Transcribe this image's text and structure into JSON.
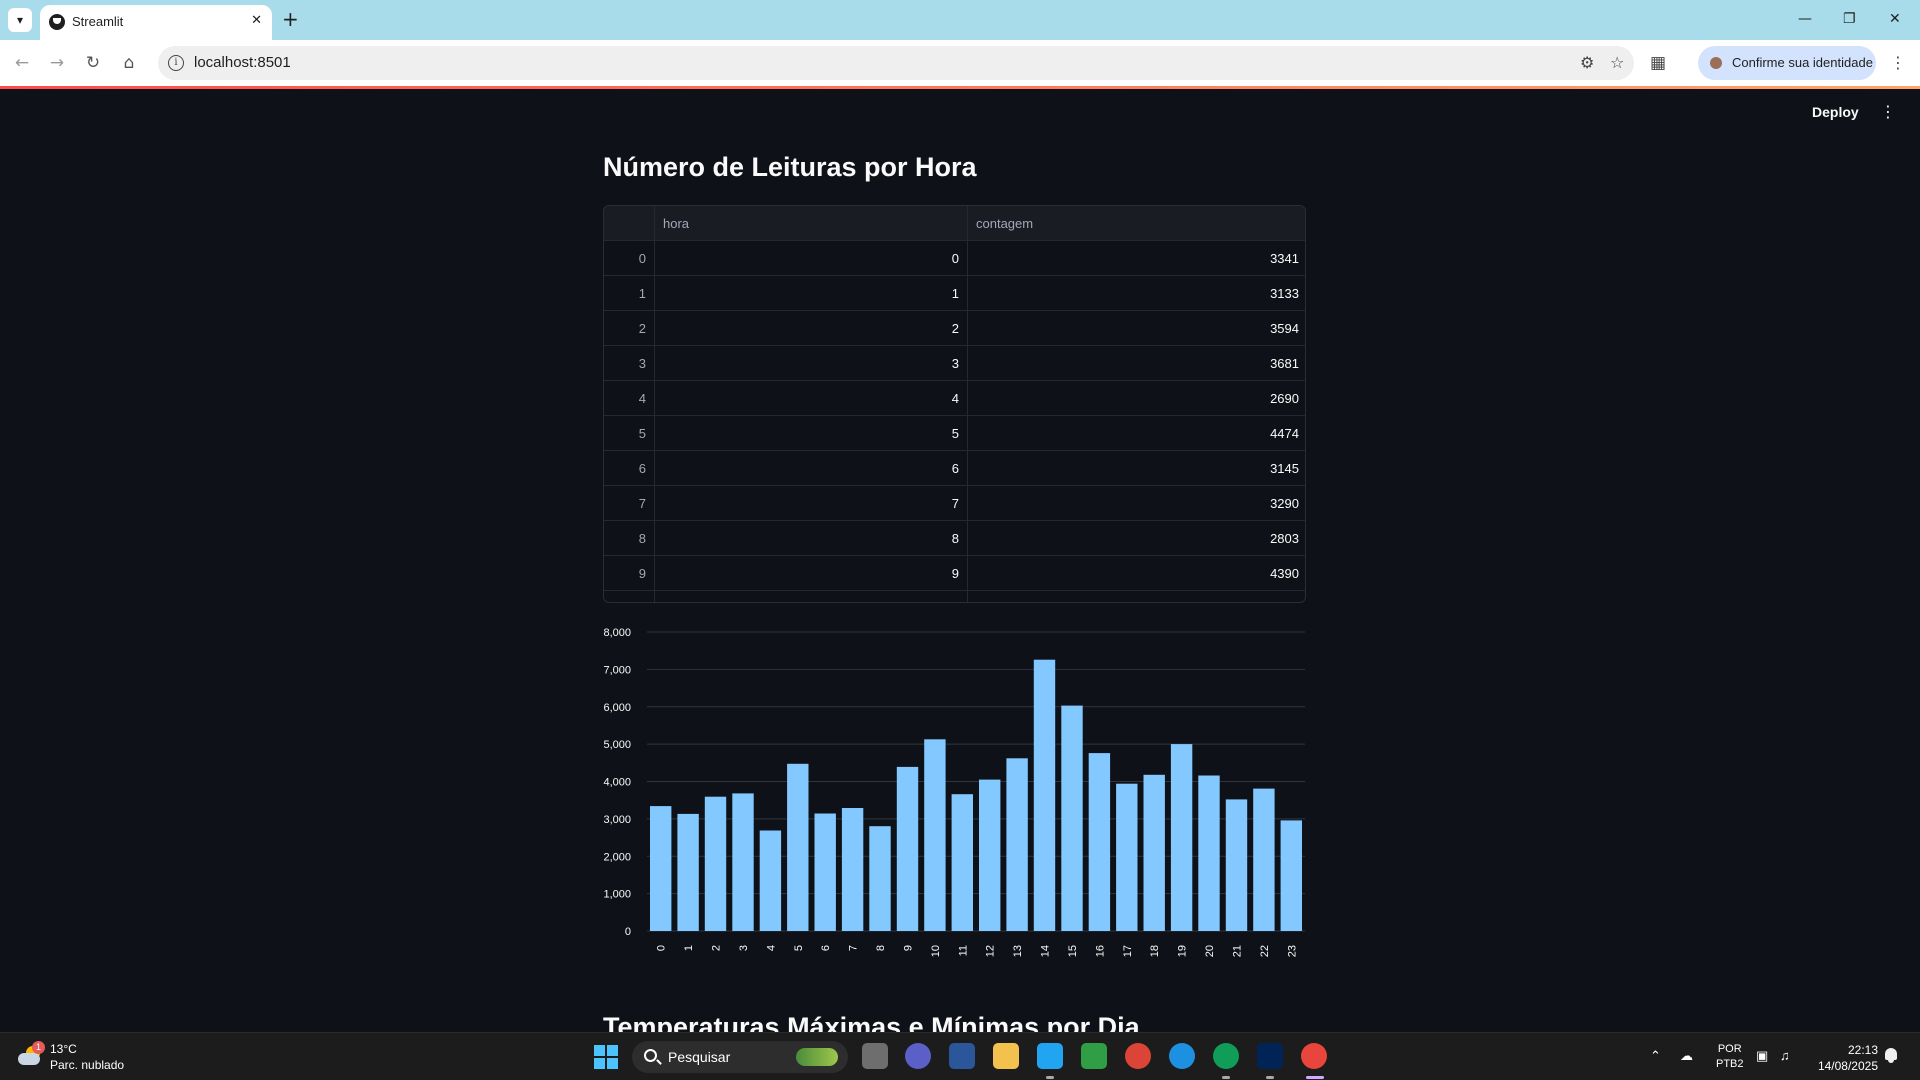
{
  "browser": {
    "tab_title": "Streamlit",
    "url": "localhost:8501",
    "identity_button": "Confirme sua identidade"
  },
  "app": {
    "deploy_label": "Deploy",
    "title": "Número de Leituras por Hora",
    "next_section_title": "Temperaturas Máximas e Mínimas por Dia"
  },
  "table": {
    "columns": [
      "",
      "hora",
      "contagem"
    ],
    "rows": [
      {
        "index": "0",
        "hora": "0",
        "contagem": "3341"
      },
      {
        "index": "1",
        "hora": "1",
        "contagem": "3133"
      },
      {
        "index": "2",
        "hora": "2",
        "contagem": "3594"
      },
      {
        "index": "3",
        "hora": "3",
        "contagem": "3681"
      },
      {
        "index": "4",
        "hora": "4",
        "contagem": "2690"
      },
      {
        "index": "5",
        "hora": "5",
        "contagem": "4474"
      },
      {
        "index": "6",
        "hora": "6",
        "contagem": "3145"
      },
      {
        "index": "7",
        "hora": "7",
        "contagem": "3290"
      },
      {
        "index": "8",
        "hora": "8",
        "contagem": "2803"
      },
      {
        "index": "9",
        "hora": "9",
        "contagem": "4390"
      }
    ]
  },
  "chart_data": {
    "type": "bar",
    "categories": [
      "0",
      "1",
      "2",
      "3",
      "4",
      "5",
      "6",
      "7",
      "8",
      "9",
      "10",
      "11",
      "12",
      "13",
      "14",
      "15",
      "16",
      "17",
      "18",
      "19",
      "20",
      "21",
      "22",
      "23"
    ],
    "values": [
      3341,
      3133,
      3594,
      3681,
      2690,
      4474,
      3145,
      3290,
      2803,
      4390,
      5130,
      3660,
      4050,
      4620,
      7260,
      6030,
      4760,
      3940,
      4180,
      5000,
      4160,
      3520,
      3810,
      2960
    ],
    "yticks": [
      0,
      1000,
      2000,
      3000,
      4000,
      5000,
      6000,
      7000,
      8000
    ],
    "ytick_labels": [
      "0",
      "1,000",
      "2,000",
      "3,000",
      "4,000",
      "5,000",
      "6,000",
      "7,000",
      "8,000"
    ],
    "ylim": [
      0,
      8000
    ],
    "bar_color": "#83c9ff",
    "grid": true
  },
  "taskbar": {
    "weather_badge": "1",
    "weather_temp": "13°C",
    "weather_desc": "Parc. nublado",
    "search_label": "Pesquisar",
    "lang_line1": "POR",
    "lang_line2": "PTB2",
    "time": "22:13",
    "date": "14/08/2025"
  }
}
